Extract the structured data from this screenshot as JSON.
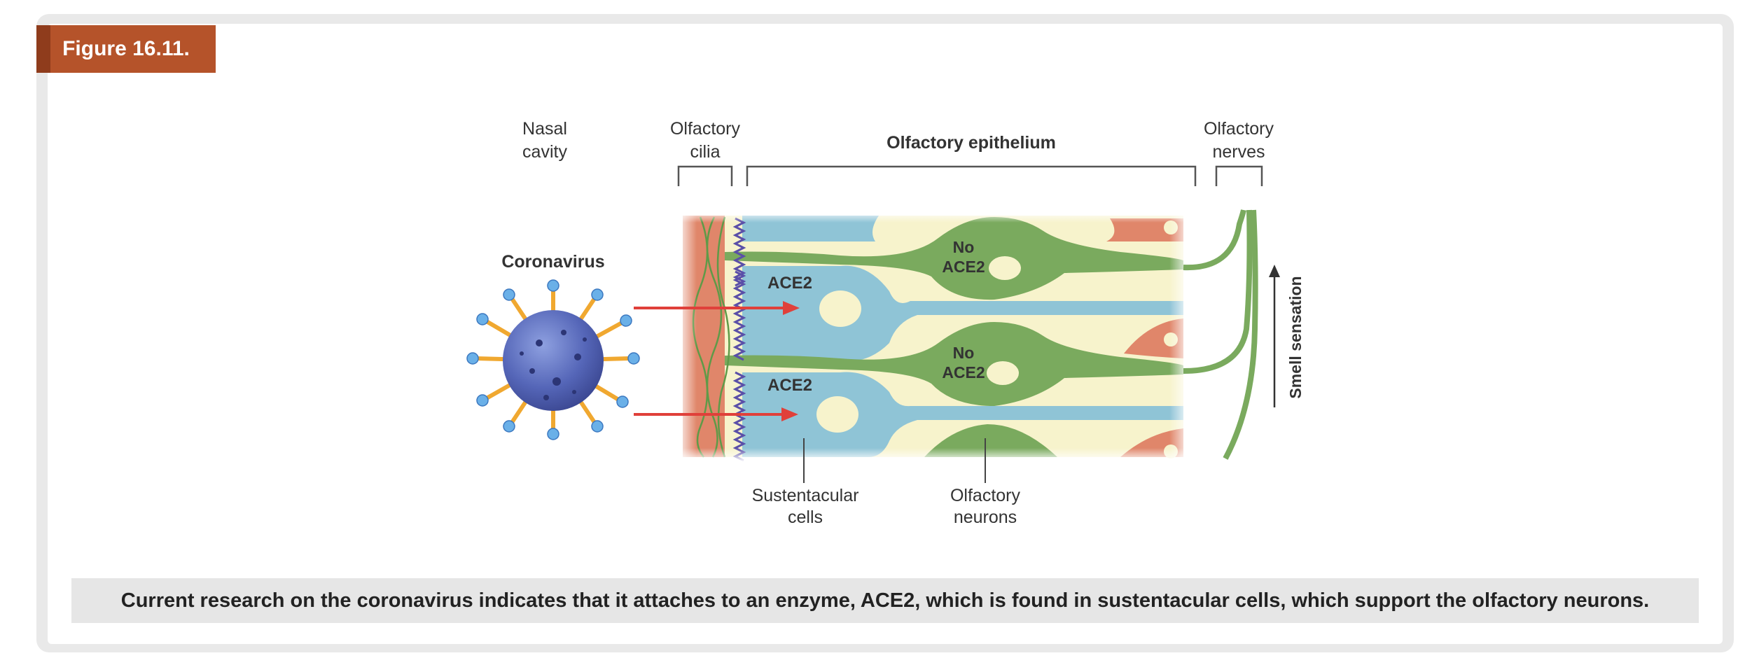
{
  "figure": {
    "label": "Figure 16.11.",
    "caption": "Current research on the coronavirus indicates that it attaches to an enzyme, ACE2, which is found in sustentacular cells, which support the olfactory neurons."
  },
  "diagram": {
    "nasal_cavity": [
      "Nasal",
      "cavity"
    ],
    "olfactory_cilia": [
      "Olfactory",
      "cilia"
    ],
    "olfactory_epithelium": "Olfactory epithelium",
    "olfactory_nerves": [
      "Olfactory",
      "nerves"
    ],
    "coronavirus": "Coronavirus",
    "ace2": "ACE2",
    "no_ace2": [
      "No",
      "ACE2"
    ],
    "sustentacular_cells": [
      "Sustentacular",
      "cells"
    ],
    "olfactory_neurons": [
      "Olfactory",
      "neurons"
    ],
    "smell_sensation": "Smell sensation",
    "colors": {
      "header": "#b5532a",
      "sustentacular": "#8fc4d6",
      "neuron": "#7aaa5e",
      "epithelium_bg": "#f7f3cc",
      "mucus": "#e0866a",
      "virus": "#4f5fb0",
      "spike": "#f0a830",
      "arrow": "#e0403a",
      "cilia": "#5a4fa8"
    }
  }
}
